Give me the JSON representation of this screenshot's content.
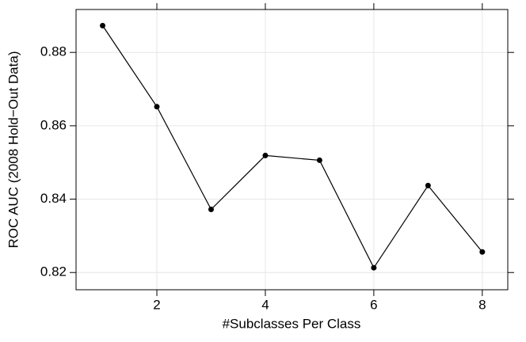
{
  "chart_data": {
    "type": "line",
    "x_label": "#Subclasses Per Class",
    "y_label": "ROC AUC (2008 Hold−Out Data)",
    "x": [
      1,
      2,
      3,
      4,
      5,
      6,
      7,
      8
    ],
    "series": [
      {
        "color": "#000000",
        "values": [
          0.8873,
          0.8652,
          0.8372,
          0.8519,
          0.8506,
          0.8213,
          0.8437,
          0.8256
        ]
      }
    ],
    "xlim": [
      0.51,
      8.47
    ],
    "xticks": [
      2,
      4,
      6,
      8
    ],
    "ylim": [
      0.8153,
      0.8917
    ],
    "yticks": [
      0.82,
      0.84,
      0.86,
      0.88
    ],
    "grid": true
  }
}
